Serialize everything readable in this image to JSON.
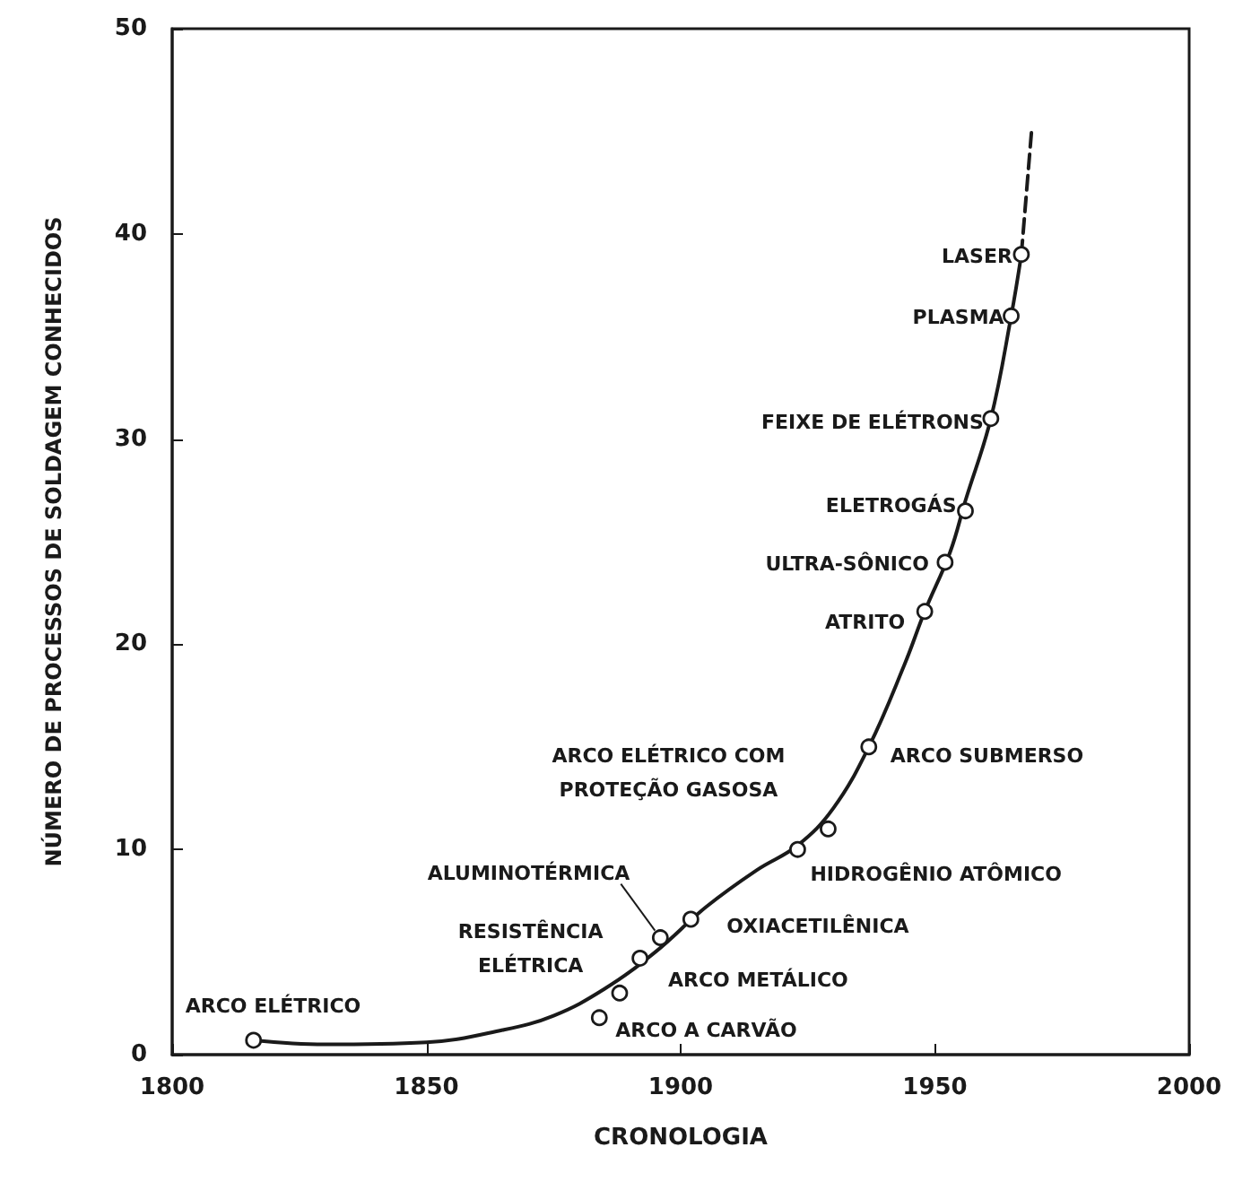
{
  "chart_data": {
    "type": "line",
    "xlabel": "CRONOLOGIA",
    "ylabel": "NÚMERO DE PROCESSOS DE SOLDAGEM CONHECIDOS",
    "xlim": [
      1800,
      2000
    ],
    "xticks": [
      1800,
      1850,
      1900,
      1950,
      2000
    ],
    "ylim": [
      0,
      50
    ],
    "yticks": [
      0,
      10,
      20,
      30,
      40,
      50
    ],
    "grid": false,
    "series": [
      {
        "color": "#1a1a1a",
        "line_style": "solid",
        "marker": "none",
        "x": [
          1816,
          1830,
          1850,
          1865,
          1875,
          1885,
          1895,
          1905,
          1915,
          1923,
          1930,
          1937,
          1944,
          1948,
          1953,
          1956,
          1961,
          1965,
          1967
        ],
        "values": [
          0.7,
          0.5,
          0.6,
          1.2,
          1.9,
          3.2,
          5,
          7.2,
          9,
          10.2,
          12,
          15,
          19,
          21.6,
          24.5,
          27,
          31,
          36,
          39
        ]
      },
      {
        "color": "#1a1a1a",
        "line_style": "dashed",
        "marker": "none",
        "x": [
          1967,
          1969
        ],
        "values": [
          39,
          45
        ]
      },
      {
        "type": "scatter",
        "color": "#1a1a1a",
        "marker": "circle",
        "x": [
          1816,
          1884,
          1888,
          1892,
          1896,
          1902,
          1923,
          1929,
          1937,
          1948,
          1952,
          1956,
          1961,
          1965,
          1967
        ],
        "values": [
          0.7,
          1.8,
          3,
          4.7,
          5.7,
          6.6,
          10,
          11,
          15,
          21.6,
          24,
          26.5,
          31,
          36,
          39
        ]
      }
    ],
    "annotations": [
      {
        "text": "ARCO ELÉTRICO",
        "x": 1816,
        "y": 0.7
      },
      {
        "text": "ARCO A CARVÃO",
        "x": 1884,
        "y": 1.8
      },
      {
        "text": "ARCO METÁLICO",
        "x": 1888,
        "y": 3
      },
      {
        "text": "RESISTÊNCIA\nELÉTRICA",
        "x": 1892,
        "y": 4.7
      },
      {
        "text": "ALUMINOTÉRMICA",
        "x": 1896,
        "y": 5.7
      },
      {
        "text": "OXIACETILÊNICA",
        "x": 1902,
        "y": 6.6
      },
      {
        "text": "HIDROGÊNIO ATÔMICO",
        "x": 1923,
        "y": 10
      },
      {
        "text": "ARCO ELÉTRICO COM\nPROTEÇÃO GASOSA",
        "x": 1929,
        "y": 11
      },
      {
        "text": "ARCO SUBMERSO",
        "x": 1937,
        "y": 15
      },
      {
        "text": "ATRITO",
        "x": 1948,
        "y": 21.6
      },
      {
        "text": "ULTRA-SÔNICO",
        "x": 1952,
        "y": 24
      },
      {
        "text": "ELETROGÁS",
        "x": 1956,
        "y": 26.5
      },
      {
        "text": "FEIXE DE ELÉTRONS",
        "x": 1961,
        "y": 31
      },
      {
        "text": "PLASMA",
        "x": 1965,
        "y": 36
      },
      {
        "text": "LASER",
        "x": 1967,
        "y": 39
      }
    ]
  }
}
